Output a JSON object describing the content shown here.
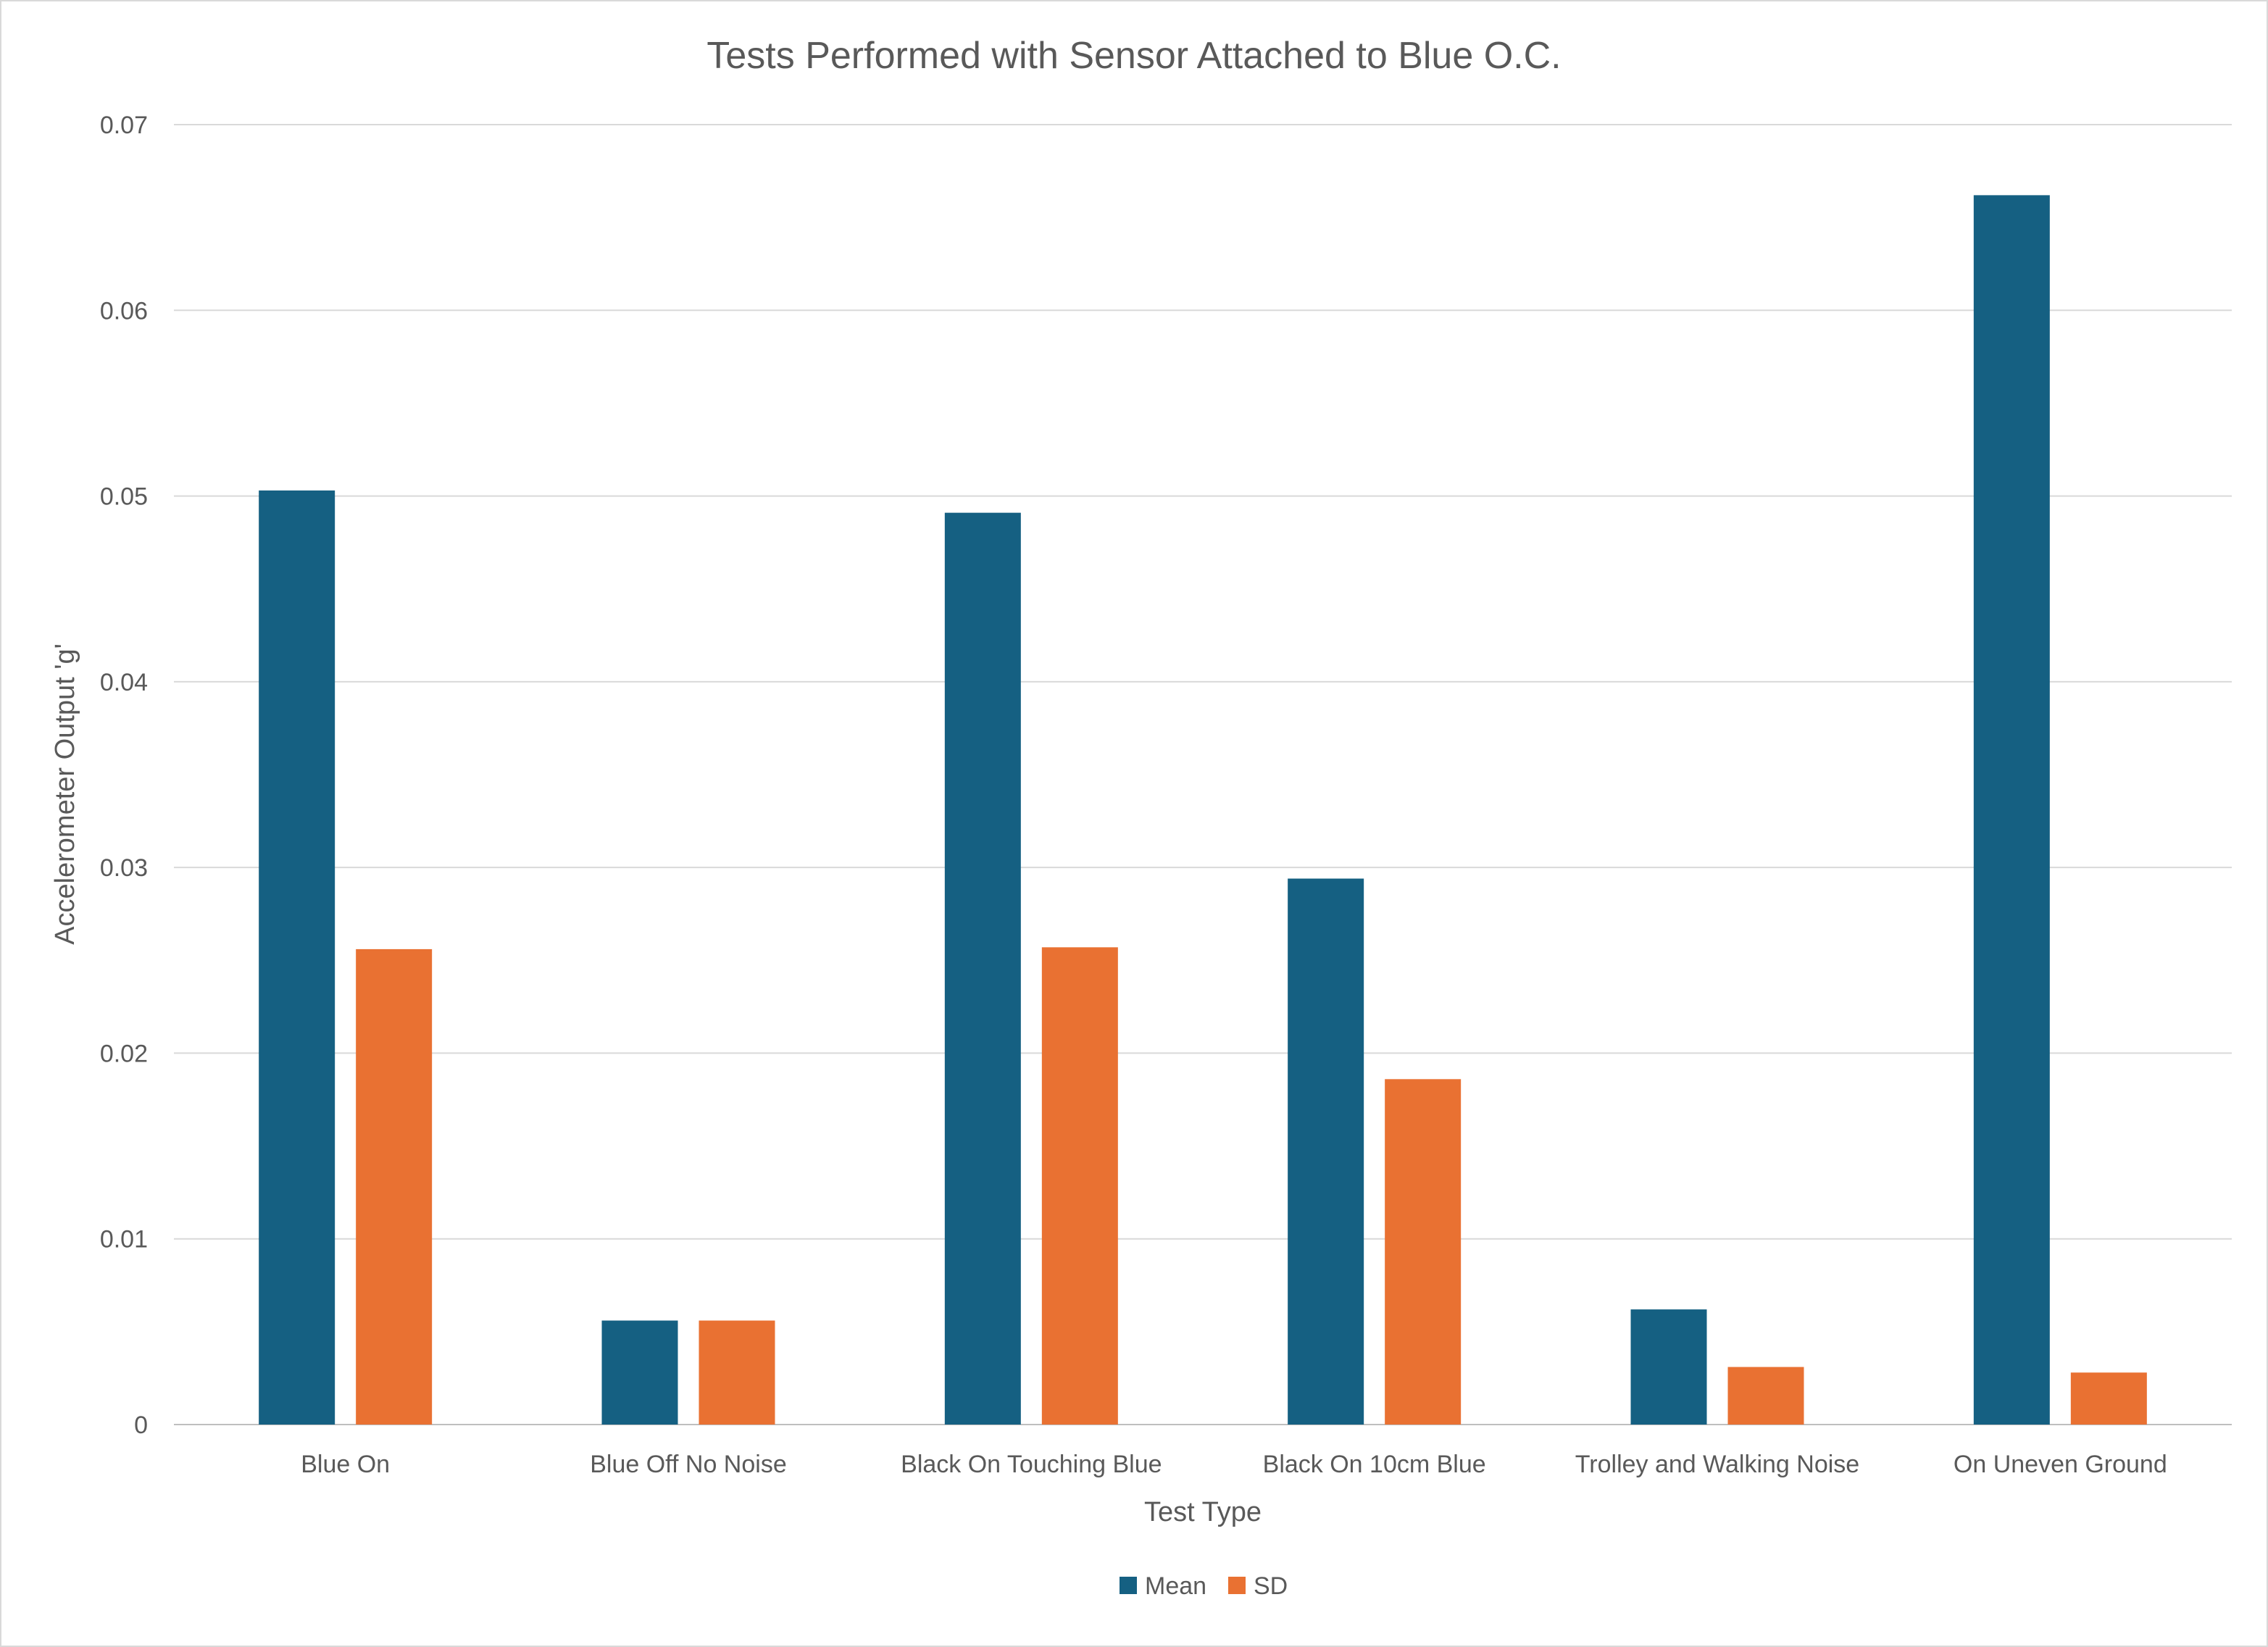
{
  "chart_data": {
    "type": "bar",
    "title": "Tests Performed with Sensor Attached to Blue O.C.",
    "xlabel": "Test Type",
    "ylabel": "Accelerometer Output 'g'",
    "ylim": [
      0,
      0.07
    ],
    "yticks": [
      "0",
      "0.01",
      "0.02",
      "0.03",
      "0.04",
      "0.05",
      "0.06",
      "0.07"
    ],
    "grid": true,
    "legend_position": "bottom",
    "categories": [
      "Blue On",
      "Blue Off No Noise",
      "Black On Touching Blue",
      "Black On 10cm Blue",
      "Trolley and Walking Noise",
      "On Uneven Ground"
    ],
    "series": [
      {
        "name": "Mean",
        "color": "#156082",
        "values": [
          0.0503,
          0.0056,
          0.0491,
          0.0294,
          0.0062,
          0.0662
        ]
      },
      {
        "name": "SD",
        "color": "#E97132",
        "values": [
          0.0256,
          0.0056,
          0.0257,
          0.0186,
          0.0031,
          0.0028
        ]
      }
    ]
  }
}
